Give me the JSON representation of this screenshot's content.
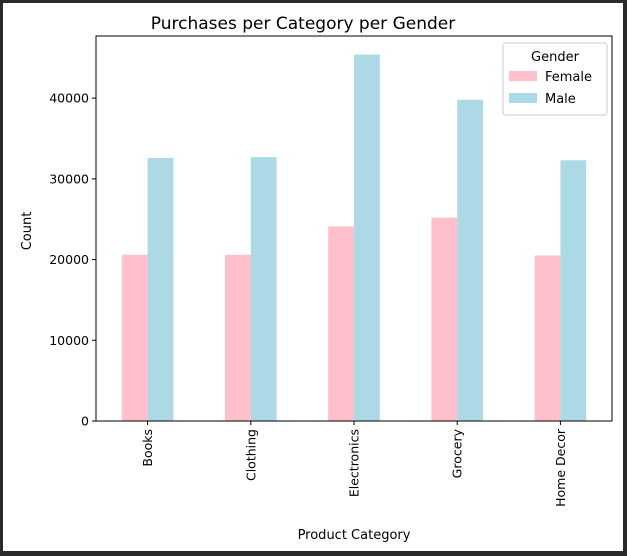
{
  "chart_data": {
    "type": "bar",
    "title": "Purchases per Category per Gender",
    "xlabel": "Product Category",
    "ylabel": "Count",
    "categories": [
      "Books",
      "Clothing",
      "Electronics",
      "Grocery",
      "Home Decor"
    ],
    "series": [
      {
        "name": "Female",
        "color": "#ffc0cb",
        "values": [
          20600,
          20600,
          24100,
          25200,
          20500
        ]
      },
      {
        "name": "Male",
        "color": "#add8e6",
        "values": [
          32600,
          32700,
          45400,
          39800,
          32300
        ]
      }
    ],
    "ylim": [
      0,
      47700
    ],
    "yticks": [
      0,
      10000,
      20000,
      30000,
      40000
    ],
    "legend": {
      "title": "Gender",
      "placement": "top-right"
    },
    "grid": false
  }
}
